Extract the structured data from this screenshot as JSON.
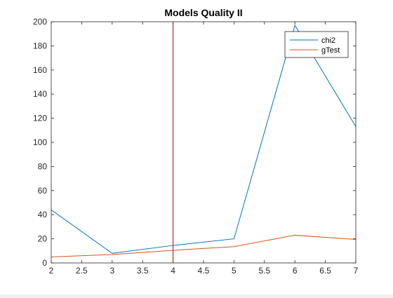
{
  "chart_data": {
    "type": "line",
    "title": "Models Quality II",
    "xlabel": "",
    "ylabel": "",
    "x": [
      2,
      3,
      4,
      5,
      6,
      7
    ],
    "series": [
      {
        "name": "chi2",
        "values": [
          44,
          8,
          14.5,
          20,
          197,
          113
        ],
        "color": "#0072BD"
      },
      {
        "name": "gTest",
        "values": [
          5,
          7,
          10.5,
          13.5,
          23,
          19.5
        ],
        "color": "#D95319"
      }
    ],
    "xlim": [
      2,
      7
    ],
    "ylim": [
      0,
      200
    ],
    "xticks": [
      "2",
      "2.5",
      "3",
      "3.5",
      "4",
      "4.5",
      "5",
      "5.5",
      "6",
      "6.5",
      "7"
    ],
    "yticks": [
      "0",
      "20",
      "40",
      "60",
      "80",
      "100",
      "120",
      "140",
      "160",
      "180",
      "200"
    ],
    "vertical_line": {
      "x": 4,
      "color": "#C00000"
    },
    "grid": false,
    "legend_position": "top-right"
  }
}
